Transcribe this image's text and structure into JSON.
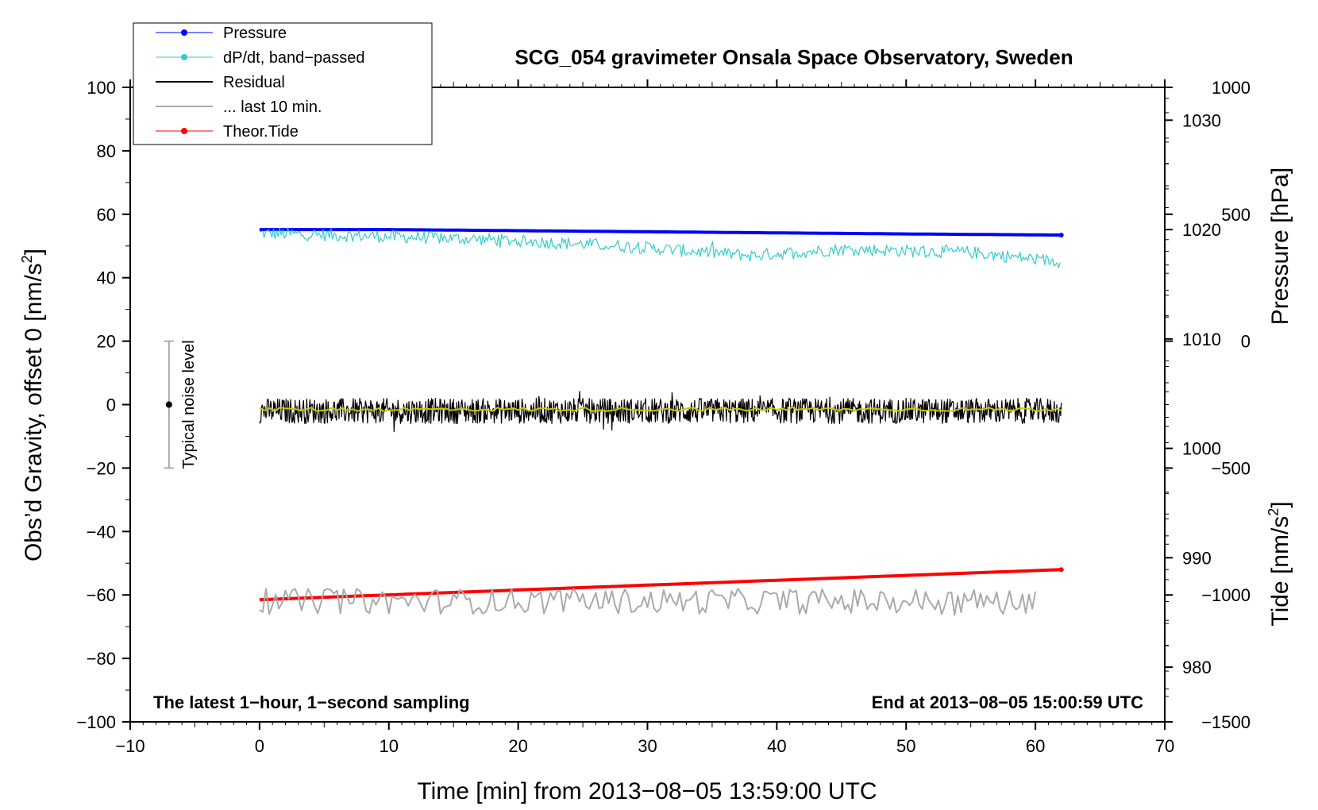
{
  "chart_data": {
    "type": "line",
    "title": "SCG_054 gravimeter Onsala Space Observatory, Sweden",
    "xlabel": "Time [min] from 2013−08−05 13:59:00 UTC",
    "ylabel_left_main": "Obs’d Gravity, offset 0 [nm/s",
    "ylabel_left_sup": "2",
    "ylabel_left_end": "]",
    "ylabel_right_pressure": "Pressure [hPa]",
    "ylabel_right_tide_main": "Tide [nm/s",
    "ylabel_right_tide_sup": "2",
    "ylabel_right_tide_end": "]",
    "xlim": [
      -10,
      70
    ],
    "ylim": [
      -100,
      100
    ],
    "pressure_ylim": [
      975,
      1033
    ],
    "tide_ylim": [
      -1500,
      1000
    ],
    "x_ticks": [
      -10,
      0,
      10,
      20,
      30,
      40,
      50,
      60,
      70
    ],
    "x_tick_labels": [
      "−10",
      "0",
      "10",
      "20",
      "30",
      "40",
      "50",
      "60",
      "70"
    ],
    "y_ticks": [
      100,
      80,
      60,
      40,
      20,
      0,
      -20,
      -40,
      -60,
      -80,
      -100
    ],
    "y_tick_labels": [
      "100",
      "80",
      "60",
      "40",
      "20",
      "0",
      "−20",
      "−40",
      "−60",
      "−80",
      "−100"
    ],
    "pressure_ticks": [
      1030,
      1020,
      1010,
      1000,
      990,
      980
    ],
    "pressure_tick_labels": [
      "1030",
      "1020",
      "1010",
      "1000",
      "990",
      "980"
    ],
    "tide_ticks": [
      1000,
      500,
      0,
      -500,
      -1000,
      -1500
    ],
    "tide_tick_labels": [
      "1000",
      "500",
      "0",
      "−500",
      "−1000",
      "−1500"
    ],
    "legend": [
      {
        "label": "Pressure",
        "color": "#0000ff",
        "marker": true
      },
      {
        "label": "dP/dt, band−passed",
        "color": "#33cccc",
        "marker": true
      },
      {
        "label": "Residual",
        "color": "#000000",
        "marker": false
      },
      {
        "label": "... last 10 min.",
        "color": "#aaaaaa",
        "marker": false
      },
      {
        "label": "Theor.Tide",
        "color": "#ff0000",
        "marker": true
      }
    ],
    "series": [
      {
        "name": "Pressure",
        "color": "#0000ff",
        "axis": "pressure",
        "x": [
          0,
          10,
          20,
          30,
          40,
          50,
          62
        ],
        "values": [
          1020.0,
          1020.0,
          1019.9,
          1019.8,
          1019.7,
          1019.6,
          1019.5
        ]
      },
      {
        "name": "dP/dt, band-passed",
        "color": "#33cccc",
        "axis": "gravity",
        "x": [
          0,
          10,
          18,
          28,
          38,
          45,
          55,
          62
        ],
        "values": [
          54,
          53,
          52,
          50,
          47,
          49,
          48,
          45
        ],
        "noise_amplitude": 2
      },
      {
        "name": "Residual",
        "color": "#000000",
        "axis": "gravity",
        "x": [
          0,
          62
        ],
        "values": [
          -2,
          -2
        ],
        "noise_amplitude": 4
      },
      {
        "name": "Residual smoothed",
        "color": "#c8c800",
        "axis": "gravity",
        "x": [
          0,
          62
        ],
        "values": [
          -1.5,
          -1.5
        ],
        "noise_amplitude": 0.6
      },
      {
        "name": "Theor.Tide",
        "color": "#ff0000",
        "axis": "gravity",
        "x": [
          0,
          62
        ],
        "values": [
          -61.5,
          -52
        ]
      },
      {
        "name": "... last 10 min.",
        "color": "#aaaaaa",
        "axis": "gravity",
        "x": [
          0,
          60
        ],
        "values": [
          -62,
          -62
        ],
        "noise_amplitude": 4
      }
    ],
    "noise_bar": {
      "x": -7,
      "y": 0,
      "low": -20,
      "high": 20,
      "label": "Typical noise level"
    },
    "note_left": "The latest 1−hour, 1−second sampling",
    "note_right": "End at 2013−08−05 15:00:59 UTC"
  }
}
